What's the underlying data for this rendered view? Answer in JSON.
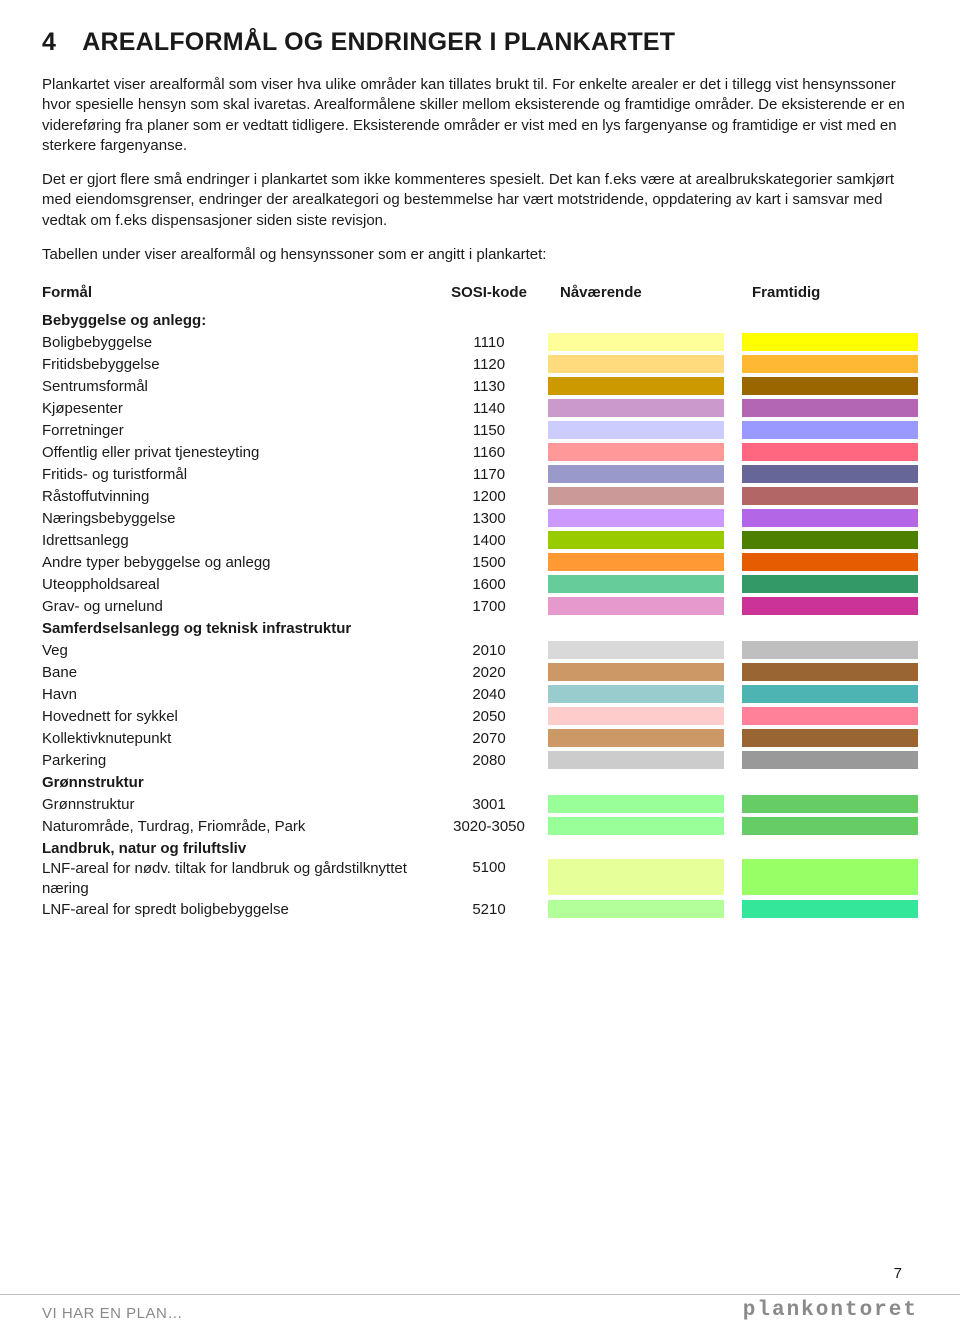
{
  "page_number": "7",
  "heading_number": "4",
  "heading_text": "AREALFORMÅL OG ENDRINGER I PLANKARTET",
  "para1": "Plankartet viser arealformål som viser hva ulike områder kan tillates brukt til. For enkelte arealer er det i tillegg vist hensynssoner hvor spesielle hensyn som skal ivaretas. Arealformålene skiller mellom eksisterende og framtidige områder. De eksisterende er en videreføring fra planer som er vedtatt tidligere. Eksisterende områder er vist med en lys fargenyanse og framtidige er vist med en sterkere fargenyanse.",
  "para2": "Det er gjort flere små endringer i plankartet som ikke kommenteres spesielt. Det kan f.eks være at arealbrukskategorier samkjørt med eiendomsgrenser, endringer der arealkategori og bestemmelse har vært motstridende, oppdatering av kart i samsvar med vedtak om f.eks dispensasjoner siden siste revisjon.",
  "table_intro": "Tabellen under viser arealformål og hensynssoner som er angitt i plankartet:",
  "headers": {
    "c1": "Formål",
    "c2": "SOSI-kode",
    "c3": "Nåværende",
    "c4": "Framtidig"
  },
  "sections": [
    {
      "title": "Bebyggelse og anlegg:",
      "rows": [
        {
          "label": "Boligbebyggelse",
          "code": "1110",
          "nv": "#ffff99",
          "ft": "#ffff00"
        },
        {
          "label": "Fritidsbebyggelse",
          "code": "1120",
          "nv": "#ffdb7d",
          "ft": "#ffb833"
        },
        {
          "label": "Sentrumsformål",
          "code": "1130",
          "nv": "#cc9900",
          "ft": "#996600"
        },
        {
          "label": "Kjøpesenter",
          "code": "1140",
          "nv": "#cc99cc",
          "ft": "#b366b3"
        },
        {
          "label": "Forretninger",
          "code": "1150",
          "nv": "#ccccff",
          "ft": "#9999ff"
        },
        {
          "label": "Offentlig eller privat tjenesteyting",
          "code": "1160",
          "nv": "#ff9999",
          "ft": "#ff6680"
        },
        {
          "label": "Fritids- og turistformål",
          "code": "1170",
          "nv": "#9999cc",
          "ft": "#666699"
        },
        {
          "label": "Råstoffutvinning",
          "code": "1200",
          "nv": "#cc9999",
          "ft": "#b36666"
        },
        {
          "label": "Næringsbebyggelse",
          "code": "1300",
          "nv": "#cc99ff",
          "ft": "#b366e6"
        },
        {
          "label": "Idrettsanlegg",
          "code": "1400",
          "nv": "#99cc00",
          "ft": "#4d8000"
        },
        {
          "label": "Andre typer bebyggelse og anlegg",
          "code": "1500",
          "nv": "#ff9933",
          "ft": "#e65c00"
        },
        {
          "label": "Uteoppholdsareal",
          "code": "1600",
          "nv": "#66cc99",
          "ft": "#339966"
        },
        {
          "label": "Grav- og urnelund",
          "code": "1700",
          "nv": "#e699cc",
          "ft": "#cc3399"
        }
      ]
    },
    {
      "title": "Samferdselsanlegg og teknisk infrastruktur",
      "rows": [
        {
          "label": "Veg",
          "code": "2010",
          "nv": "#d9d9d9",
          "ft": "#bfbfbf"
        },
        {
          "label": "Bane",
          "code": "2020",
          "nv": "#cc9966",
          "ft": "#996633"
        },
        {
          "label": "Havn",
          "code": "2040",
          "nv": "#99cccc",
          "ft": "#4db3b3"
        },
        {
          "label": "Hovednett for sykkel",
          "code": "2050",
          "nv": "#ffcccc",
          "ft": "#ff8099"
        },
        {
          "label": "Kollektivknutepunkt",
          "code": "2070",
          "nv": "#cc9966",
          "ft": "#996633"
        },
        {
          "label": "Parkering",
          "code": "2080",
          "nv": "#cccccc",
          "ft": "#999999"
        }
      ]
    },
    {
      "title": "Grønnstruktur",
      "rows": [
        {
          "label": "Grønnstruktur",
          "code": "3001",
          "nv": "#99ff99",
          "ft": "#66cc66"
        },
        {
          "label": "Naturområde, Turdrag, Friområde, Park",
          "code": "3020-3050",
          "nv": "#99ff99",
          "ft": "#66cc66"
        }
      ]
    },
    {
      "title": "Landbruk, natur og friluftsliv",
      "rows": [
        {
          "label": "LNF-areal for nødv. tiltak for landbruk og gårdstilknyttet næring",
          "code": "5100",
          "nv": "#e6ff99",
          "ft": "#99ff66",
          "multi": true
        },
        {
          "label": "LNF-areal for spredt boligbebyggelse",
          "code": "5210",
          "nv": "#b3ff99",
          "ft": "#33e699"
        }
      ]
    }
  ],
  "footer_left": "VI HAR EN PLAN…",
  "footer_right": "plankontoret"
}
